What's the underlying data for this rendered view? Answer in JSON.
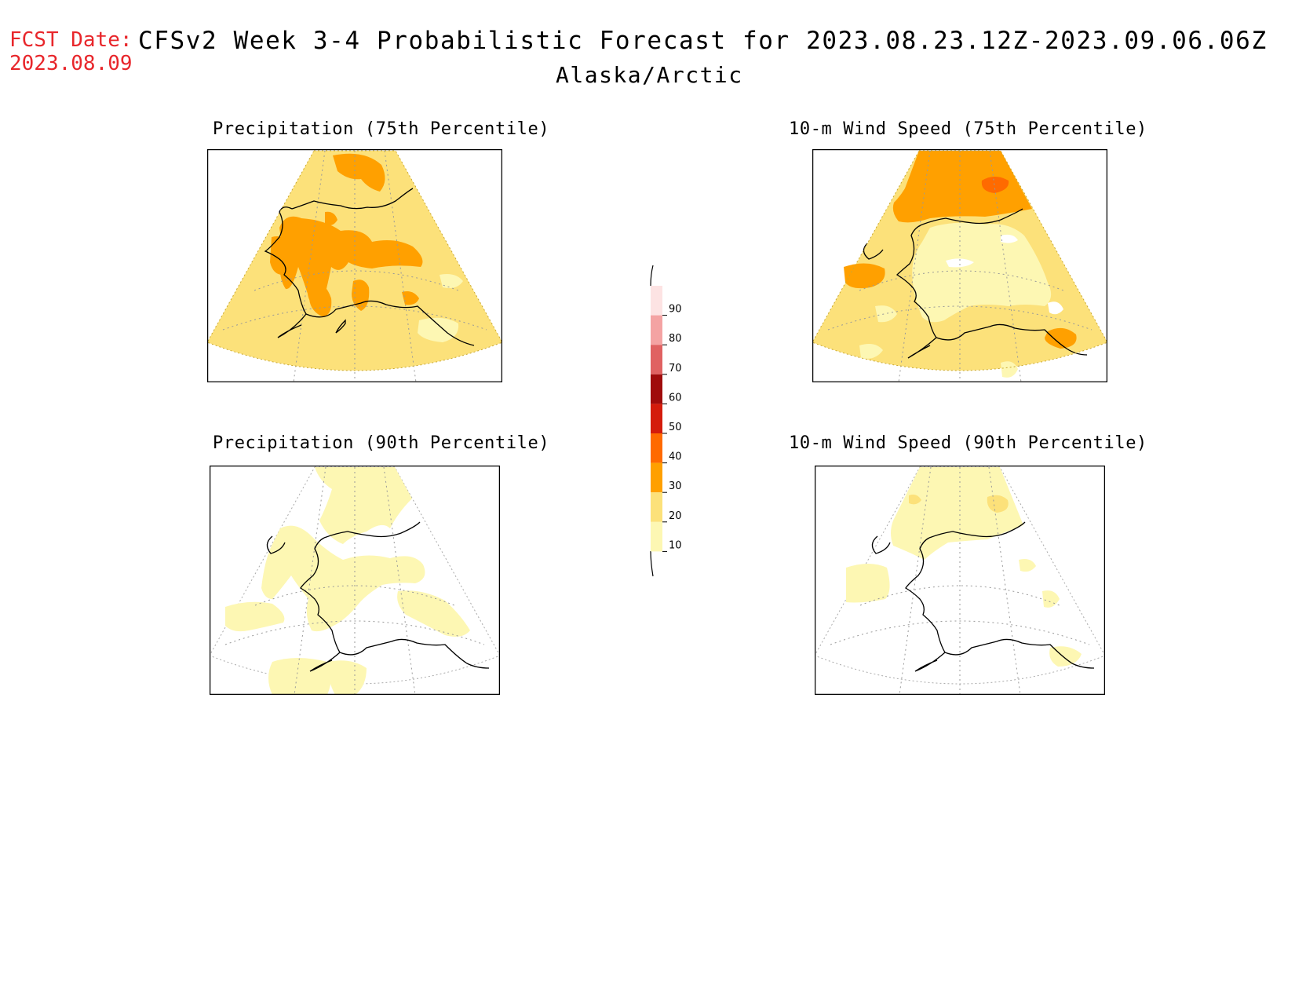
{
  "header": {
    "fcst_label": "FCST Date:",
    "fcst_date": "2023.08.09",
    "title": "CFSv2 Week 3-4 Probabilistic Forecast for 2023.08.23.12Z-2023.09.06.06Z",
    "region": "Alaska/Arctic"
  },
  "panels": [
    {
      "id": "precip-75",
      "title": "Precipitation (75th Percentile)",
      "fill": "#fce17a"
    },
    {
      "id": "wind-75",
      "title": "10-m Wind Speed (75th Percentile)",
      "fill": "#fce17a"
    },
    {
      "id": "precip-90",
      "title": "Precipitation (90th Percentile)",
      "fill": "#fdf7b3"
    },
    {
      "id": "wind-90",
      "title": "10-m Wind Speed (90th Percentile)",
      "fill": "#ffffff"
    }
  ],
  "colorbar": {
    "labels": [
      "90",
      "80",
      "70",
      "60",
      "50",
      "40",
      "30",
      "20",
      "10"
    ],
    "colors": [
      "#fde3e3",
      "#f4a3a3",
      "#e06262",
      "#a00c0c",
      "#d41c0c",
      "#ff6a00",
      "#ffa000",
      "#fce17a",
      "#fdf7b3"
    ]
  }
}
